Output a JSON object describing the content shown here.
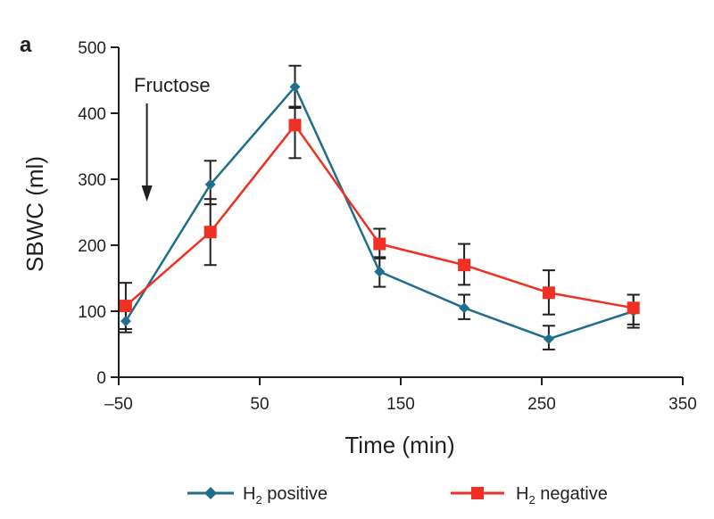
{
  "panel_label": "a",
  "annotation": "Fructose",
  "legend": {
    "positive": {
      "main": "H",
      "sub": "2",
      "rest": " positive"
    },
    "negative": {
      "main": "H",
      "sub": "2",
      "rest": " negative"
    }
  },
  "colors": {
    "positive": "#1f6e8c",
    "negative": "#ee3124",
    "errorbar": "#231f20",
    "axis": "#231f20"
  },
  "chart_data": {
    "type": "line",
    "xlabel": "Time (min)",
    "ylabel": "SBWC (ml)",
    "xlim": [
      -50,
      350
    ],
    "ylim": [
      0,
      500
    ],
    "xticks": [
      -50,
      50,
      150,
      250,
      350
    ],
    "yticks": [
      0,
      100,
      200,
      300,
      400,
      500
    ],
    "xtick_labels": [
      "–50",
      "50",
      "150",
      "250",
      "350"
    ],
    "ytick_labels": [
      "0",
      "100",
      "200",
      "300",
      "400",
      "500"
    ],
    "grid": false,
    "legend_position": "bottom",
    "annotation": {
      "text": "Fructose",
      "x": -30
    },
    "series": [
      {
        "key": "positive",
        "marker": "diamond",
        "x": [
          -45,
          15,
          75,
          135,
          195,
          255,
          315
        ],
        "y": [
          85,
          292,
          440,
          160,
          105,
          58,
          100
        ],
        "err_low": [
          68,
          262,
          408,
          137,
          88,
          42,
          80
        ],
        "err_high": [
          100,
          328,
          472,
          180,
          125,
          78,
          125
        ]
      },
      {
        "key": "negative",
        "marker": "square",
        "x": [
          -45,
          15,
          75,
          135,
          195,
          255,
          315
        ],
        "y": [
          108,
          220,
          382,
          202,
          170,
          128,
          105
        ],
        "err_low": [
          73,
          170,
          332,
          182,
          140,
          95,
          75
        ],
        "err_high": [
          143,
          270,
          410,
          225,
          202,
          162,
          125
        ]
      }
    ]
  }
}
